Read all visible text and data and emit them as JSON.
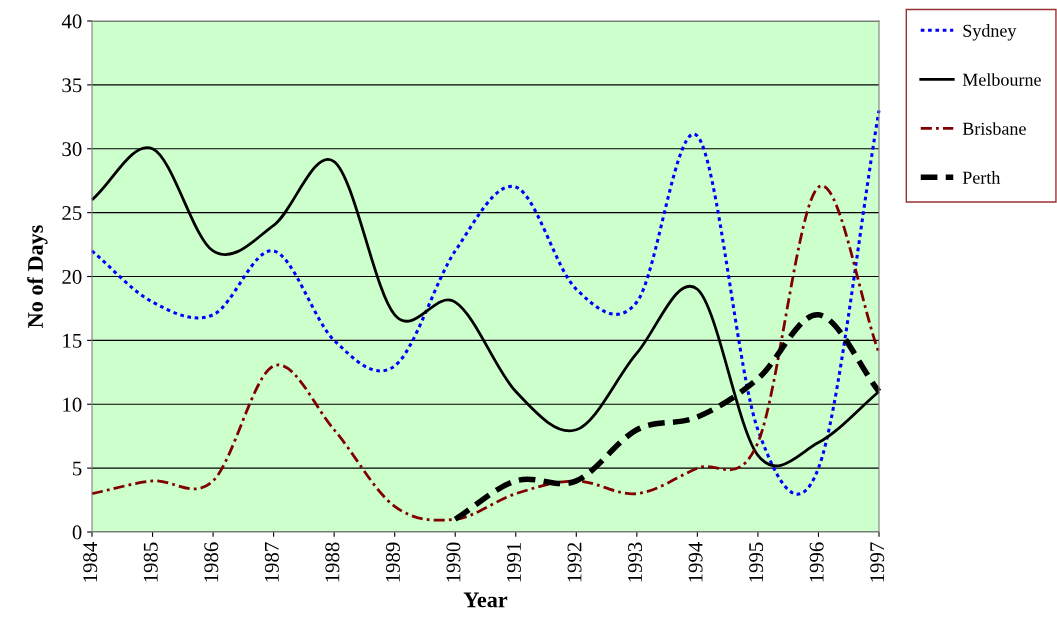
{
  "chart_data": {
    "type": "line",
    "xlabel": "Year",
    "ylabel": "No of Days",
    "x": [
      1984,
      1985,
      1986,
      1987,
      1988,
      1989,
      1990,
      1991,
      1992,
      1993,
      1994,
      1995,
      1996,
      1997
    ],
    "xlim": [
      1984,
      1997
    ],
    "xticks": [
      1984,
      1985,
      1986,
      1987,
      1988,
      1989,
      1990,
      1991,
      1992,
      1993,
      1994,
      1995,
      1996,
      1997
    ],
    "ylim": [
      0,
      40
    ],
    "yticks": [
      0,
      5,
      10,
      15,
      20,
      25,
      30,
      35,
      40
    ],
    "grid": "y",
    "legend": "right",
    "marker": "none",
    "series": [
      {
        "name": "Sydney",
        "color": "#0000ff",
        "line_style": "dotted",
        "values": [
          22,
          18,
          17,
          22,
          15,
          13,
          22,
          27,
          19,
          18,
          31,
          8,
          5,
          33
        ]
      },
      {
        "name": "Melbourne",
        "color": "#000000",
        "line_style": "solid",
        "values": [
          26,
          30,
          22,
          24,
          29,
          17,
          18,
          11,
          8,
          14,
          19,
          6,
          7,
          11
        ]
      },
      {
        "name": "Brisbane",
        "color": "#800000",
        "line_style": "dashdot",
        "values": [
          3,
          4,
          4,
          13,
          8,
          2,
          1,
          3,
          4,
          3,
          5,
          7,
          27,
          14
        ]
      },
      {
        "name": "Perth",
        "color": "#000000",
        "line_style": "dashed",
        "values": [
          null,
          null,
          null,
          null,
          null,
          null,
          1,
          4,
          4,
          8,
          9,
          12,
          17,
          11
        ]
      }
    ]
  }
}
